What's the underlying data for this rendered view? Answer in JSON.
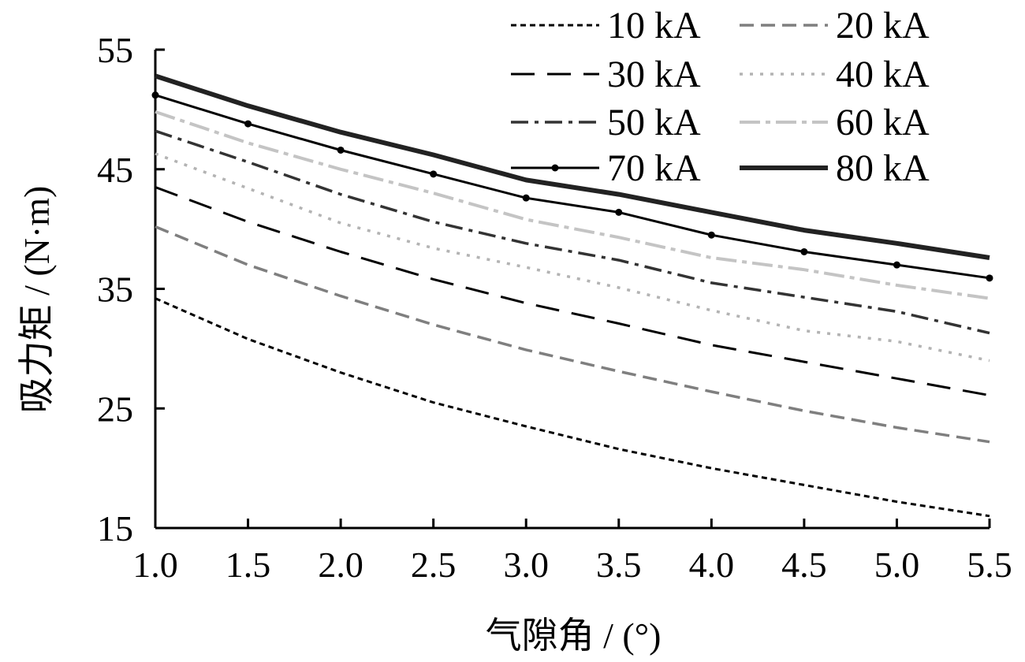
{
  "chart_data": {
    "type": "line",
    "title": "",
    "xlabel": "气隙角 / (°)",
    "ylabel": "吸力矩 / (N·m)",
    "xlim": [
      1.0,
      5.5
    ],
    "ylim": [
      15,
      55
    ],
    "x_ticks": [
      "1.0",
      "1.5",
      "2.0",
      "2.5",
      "3.0",
      "3.5",
      "4.0",
      "4.5",
      "5.0",
      "5.5"
    ],
    "y_ticks": [
      "15",
      "25",
      "35",
      "45",
      "55"
    ],
    "x": [
      1.0,
      1.5,
      2.0,
      2.5,
      3.0,
      3.5,
      4.0,
      4.5,
      5.0,
      5.5
    ],
    "grid": false,
    "legend_position": "top-right",
    "series": [
      {
        "name": "10 kA",
        "values": [
          34.2,
          30.8,
          28.0,
          25.5,
          23.5,
          21.6,
          20.0,
          18.6,
          17.2,
          16.0
        ]
      },
      {
        "name": "20 kA",
        "values": [
          40.2,
          37.0,
          34.4,
          32.0,
          29.9,
          28.1,
          26.4,
          24.8,
          23.4,
          22.2
        ]
      },
      {
        "name": "30 kA",
        "values": [
          43.5,
          40.6,
          38.1,
          35.8,
          33.8,
          32.1,
          30.3,
          28.9,
          27.5,
          26.1
        ]
      },
      {
        "name": "40 kA",
        "values": [
          46.3,
          43.4,
          40.5,
          38.4,
          36.8,
          35.1,
          33.2,
          31.5,
          30.6,
          29.0
        ]
      },
      {
        "name": "50 kA",
        "values": [
          48.2,
          45.6,
          42.9,
          40.6,
          38.8,
          37.4,
          35.5,
          34.3,
          33.1,
          31.3
        ]
      },
      {
        "name": "60 kA",
        "values": [
          49.8,
          47.2,
          45.0,
          43.0,
          40.8,
          39.3,
          37.6,
          36.6,
          35.3,
          34.2
        ]
      },
      {
        "name": "70 kA",
        "values": [
          51.2,
          48.8,
          46.6,
          44.6,
          42.6,
          41.4,
          39.5,
          38.1,
          37.0,
          35.9
        ]
      },
      {
        "name": "80 kA",
        "values": [
          52.8,
          50.3,
          48.1,
          46.2,
          44.1,
          42.9,
          41.4,
          39.9,
          38.8,
          37.6
        ]
      }
    ],
    "styles": [
      {
        "color": "#000000",
        "dash": "7,5",
        "width": 3,
        "markers": false
      },
      {
        "color": "#7f7f7f",
        "dash": "18,9",
        "width": 3.5,
        "markers": false
      },
      {
        "color": "#000000",
        "dash": "30,16",
        "width": 3,
        "markers": false
      },
      {
        "color": "#b3b3b3",
        "dash": "4,9",
        "width": 3.5,
        "markers": false
      },
      {
        "color": "#333333",
        "dash": "22,8,5,8",
        "width": 3.5,
        "markers": false
      },
      {
        "color": "#c4c4c4",
        "dash": "26,7,6,7",
        "width": 4,
        "markers": false
      },
      {
        "color": "#000000",
        "dash": "",
        "width": 3,
        "markers": true
      },
      {
        "color": "#222222",
        "dash": "",
        "width": 6,
        "markers": false
      }
    ]
  }
}
